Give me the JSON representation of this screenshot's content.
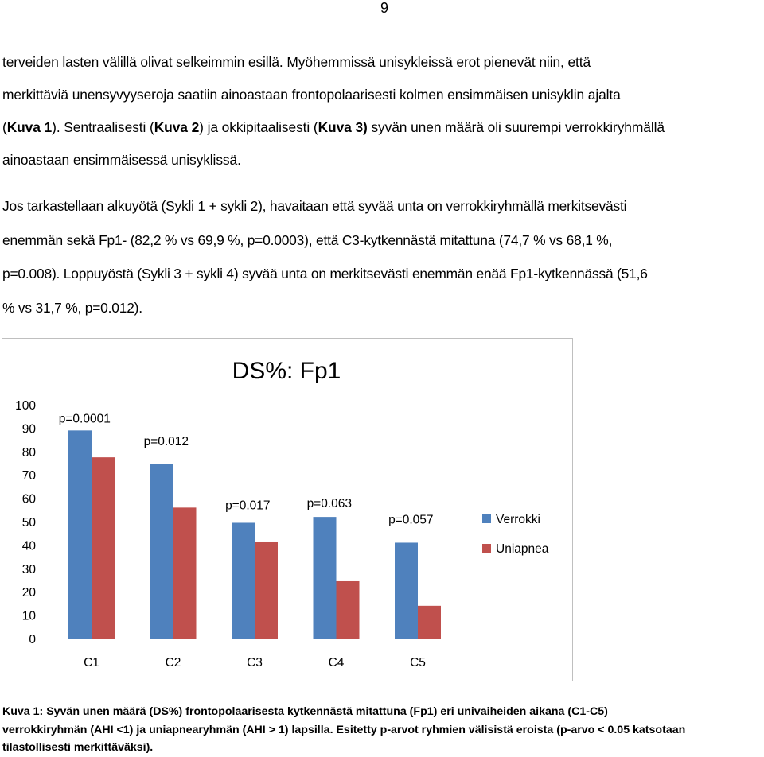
{
  "page_number": "9",
  "paragraph1": {
    "line1": "terveiden lasten välillä olivat selkeimmin esillä. Myöhemmissä unisykleissä erot pienevät niin, että",
    "line2": "merkittäviä unensyvyyseroja saatiin ainoastaan frontopolaarisesti kolmen ensimmäisen unisyklin ajalta",
    "line3_open": "(",
    "line3_bold": "Kuva 1",
    "line3_rest_a": "). Sentraalisesti (",
    "line3_bold2": "Kuva 2",
    "line3_rest_b": ") ja okkipitaalisesti (",
    "line3_bold3": "Kuva 3)",
    "line3_rest_c": " syvän unen määrä oli suurempi verrokkiryhmällä",
    "line4": "ainoastaan ensimmäisessä unisyklissä."
  },
  "paragraph2": {
    "line1": "Jos tarkastellaan alkuyötä (Sykli 1 + sykli 2), havaitaan että syvää unta on verrokkiryhmällä merkitsevästi",
    "line2": "enemmän sekä Fp1- (82,2 % vs 69,9 %, p=0.0003), että C3-kytkennästä mitattuna (74,7 % vs  68,1 %,",
    "line3": "p=0.008). Loppuyöstä (Sykli 3 + sykli 4) syvää unta on merkitsevästi enemmän enää Fp1-kytkennässä (51,6",
    "line4": "% vs 31,7 %, p=0.012)."
  },
  "chart_data": {
    "type": "bar",
    "title": "DS%: Fp1",
    "categories": [
      "C1",
      "C2",
      "C3",
      "C4",
      "C5"
    ],
    "series": [
      {
        "name": "Verrokki",
        "values": [
          89,
          74.5,
          49.5,
          52,
          41
        ],
        "color": "#4f81bd"
      },
      {
        "name": "Uniapnea",
        "values": [
          77.5,
          56,
          41.5,
          24.5,
          14
        ],
        "color": "#c0504d"
      }
    ],
    "annotations": [
      "p=0.0001",
      "p=0.012",
      "p=0.017",
      "p=0.063",
      "p=0.057"
    ],
    "yticks": [
      "100",
      "90",
      "80",
      "70",
      "60",
      "50",
      "40",
      "30",
      "20",
      "10",
      "0"
    ],
    "ylim": [
      0,
      100
    ],
    "grid": false,
    "legend": "right"
  },
  "caption": {
    "label": "Kuva 1:",
    "line1_rest": " Syvän unen määrä (DS%) frontopolaarisesta kytkennästä mitattuna (Fp1) eri univaiheiden aikana (C1-C5)",
    "line2": "verrokkiryhmän (AHI <1) ja uniapnearyhmän (AHI > 1) lapsilla. Esitetty p-arvot ryhmien välisistä eroista (p-arvo < 0.05 katsotaan",
    "line3": "tilastollisesti merkittäväksi)."
  }
}
